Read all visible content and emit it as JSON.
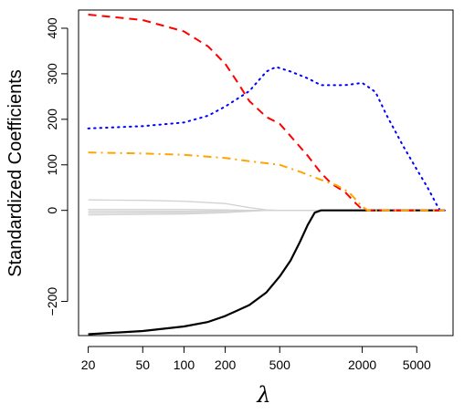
{
  "chart_data": {
    "type": "line",
    "title": "",
    "xlabel": "λ",
    "ylabel": "Standardized Coefficients",
    "x_scale": "log",
    "xlim": [
      17,
      9200
    ],
    "ylim": [
      -275,
      440
    ],
    "x_ticks": [
      20,
      50,
      100,
      200,
      500,
      2000,
      5000
    ],
    "x_tick_labels": [
      "20",
      "50",
      "100",
      "200",
      "500",
      "2000",
      "5000"
    ],
    "y_ticks": [
      -200,
      0,
      100,
      200,
      300,
      400
    ],
    "y_tick_labels": [
      "−200",
      "0",
      "100",
      "200",
      "300",
      "400"
    ],
    "grid": false,
    "legend": false,
    "series": [
      {
        "color": "#d3d3d3",
        "style": "solid",
        "width": 1.3,
        "points": [
          [
            20,
            23
          ],
          [
            50,
            22
          ],
          [
            100,
            20
          ],
          [
            200,
            15
          ],
          [
            300,
            6
          ],
          [
            400,
            1
          ],
          [
            500,
            0
          ],
          [
            8000,
            0
          ]
        ]
      },
      {
        "color": "#d3d3d3",
        "style": "solid",
        "width": 1.3,
        "points": [
          [
            20,
            2
          ],
          [
            100,
            2
          ],
          [
            200,
            1
          ],
          [
            300,
            0
          ],
          [
            8000,
            0
          ]
        ]
      },
      {
        "color": "#d3d3d3",
        "style": "solid",
        "width": 1.3,
        "points": [
          [
            20,
            -2
          ],
          [
            100,
            -2
          ],
          [
            200,
            -1
          ],
          [
            300,
            0
          ],
          [
            8000,
            0
          ]
        ]
      },
      {
        "color": "#d3d3d3",
        "style": "solid",
        "width": 1.3,
        "points": [
          [
            20,
            -6
          ],
          [
            100,
            -5
          ],
          [
            200,
            -4
          ],
          [
            300,
            -1
          ],
          [
            400,
            0
          ],
          [
            8000,
            0
          ]
        ]
      },
      {
        "color": "#d3d3d3",
        "style": "solid",
        "width": 1.3,
        "points": [
          [
            20,
            -10
          ],
          [
            100,
            -8
          ],
          [
            200,
            -5
          ],
          [
            300,
            -2
          ],
          [
            400,
            0
          ],
          [
            8000,
            0
          ]
        ]
      },
      {
        "color": "#000000",
        "style": "solid",
        "width": 2.2,
        "points": [
          [
            20,
            -272
          ],
          [
            50,
            -265
          ],
          [
            100,
            -255
          ],
          [
            150,
            -245
          ],
          [
            200,
            -232
          ],
          [
            300,
            -208
          ],
          [
            400,
            -180
          ],
          [
            500,
            -145
          ],
          [
            600,
            -110
          ],
          [
            700,
            -70
          ],
          [
            800,
            -32
          ],
          [
            900,
            -5
          ],
          [
            1000,
            0
          ],
          [
            8000,
            0
          ]
        ]
      },
      {
        "color": "#0000ff",
        "style": "dotted",
        "width": 2,
        "points": [
          [
            20,
            180
          ],
          [
            50,
            185
          ],
          [
            100,
            193
          ],
          [
            150,
            208
          ],
          [
            200,
            228
          ],
          [
            300,
            262
          ],
          [
            400,
            305
          ],
          [
            470,
            315
          ],
          [
            600,
            305
          ],
          [
            800,
            290
          ],
          [
            1000,
            275
          ],
          [
            1500,
            275
          ],
          [
            2000,
            280
          ],
          [
            2500,
            260
          ],
          [
            3000,
            210
          ],
          [
            4000,
            140
          ],
          [
            5000,
            90
          ],
          [
            6000,
            50
          ],
          [
            7000,
            12
          ],
          [
            7400,
            0
          ],
          [
            8000,
            0
          ]
        ]
      },
      {
        "color": "#ff0000",
        "style": "dashed",
        "width": 2,
        "points": [
          [
            20,
            430
          ],
          [
            50,
            418
          ],
          [
            100,
            393
          ],
          [
            150,
            360
          ],
          [
            200,
            322
          ],
          [
            250,
            278
          ],
          [
            300,
            240
          ],
          [
            400,
            205
          ],
          [
            500,
            190
          ],
          [
            600,
            163
          ],
          [
            800,
            120
          ],
          [
            1000,
            82
          ],
          [
            1200,
            58
          ],
          [
            1500,
            40
          ],
          [
            1800,
            15
          ],
          [
            2000,
            2
          ],
          [
            2200,
            0
          ],
          [
            8000,
            0
          ]
        ]
      },
      {
        "color": "#ffa500",
        "style": "dashdot",
        "width": 2,
        "points": [
          [
            20,
            127
          ],
          [
            50,
            125
          ],
          [
            100,
            122
          ],
          [
            200,
            115
          ],
          [
            300,
            108
          ],
          [
            500,
            100
          ],
          [
            700,
            85
          ],
          [
            1000,
            67
          ],
          [
            1300,
            55
          ],
          [
            1600,
            40
          ],
          [
            2000,
            8
          ],
          [
            2200,
            0
          ],
          [
            8000,
            0
          ]
        ]
      }
    ]
  }
}
